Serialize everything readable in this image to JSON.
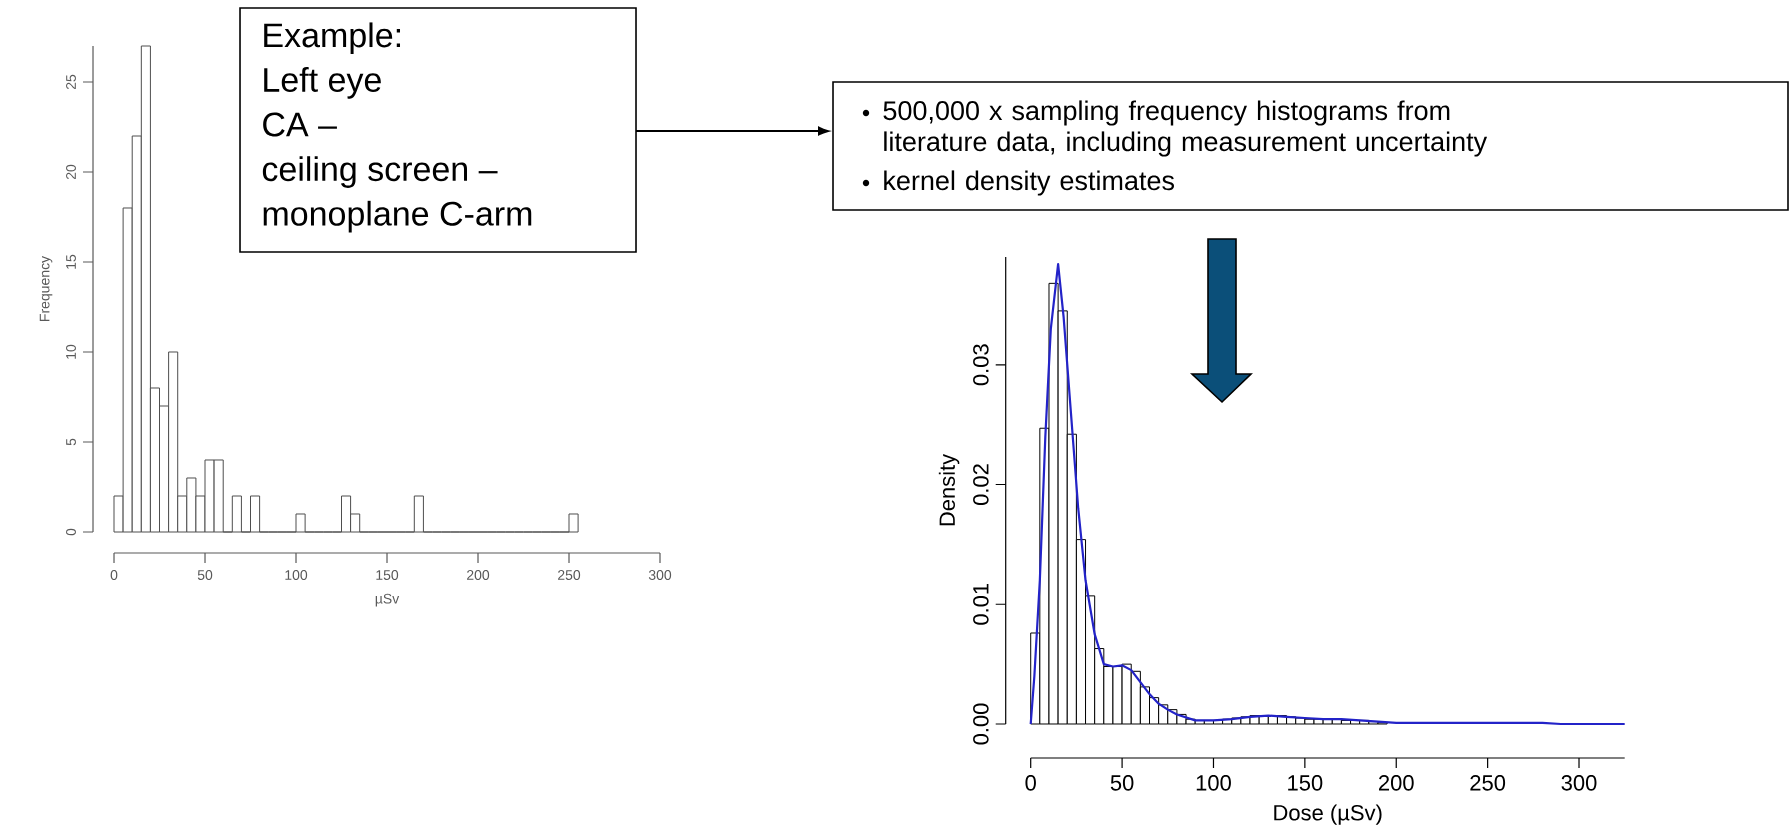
{
  "chart_data": [
    {
      "type": "histogram",
      "bins": [
        0,
        5,
        10,
        15,
        20,
        25,
        30,
        35,
        40,
        45,
        50,
        55,
        60,
        65,
        70,
        75,
        80,
        85,
        90,
        95,
        100,
        105,
        110,
        115,
        120,
        125,
        130,
        135,
        140,
        145,
        150,
        155,
        160,
        165,
        170,
        175,
        180,
        185,
        190,
        195,
        200,
        205,
        210,
        215,
        220,
        225,
        230,
        235,
        240,
        245,
        250,
        255
      ],
      "values": [
        2,
        18,
        22,
        27,
        8,
        7,
        10,
        2,
        3,
        2,
        4,
        4,
        0,
        2,
        0,
        2,
        0,
        0,
        0,
        0,
        1,
        0,
        0,
        0,
        0,
        2,
        1,
        0,
        0,
        0,
        0,
        0,
        0,
        2,
        0,
        0,
        0,
        0,
        0,
        0,
        0,
        0,
        0,
        0,
        0,
        0,
        0,
        0,
        0,
        0,
        1
      ],
      "color": "#4d4d4d",
      "xlim": [
        0,
        300
      ],
      "xticks": [
        0,
        50,
        100,
        150,
        200,
        250,
        300
      ],
      "ylim": [
        0,
        27
      ],
      "yticks": [
        0,
        5,
        10,
        15,
        20,
        25
      ],
      "xlabel": "µSv",
      "ylabel": "Frequency",
      "annotations": [
        "Example:",
        "Left eye",
        "CA –",
        "ceiling screen –",
        "monoplane C-arm"
      ]
    },
    {
      "type": "histogram",
      "series": [
        {
          "color": "#000000",
          "bins": [
            0,
            5,
            10,
            15,
            20,
            25,
            30,
            35,
            40,
            45,
            50,
            55,
            60,
            65,
            70,
            75,
            80,
            85,
            90,
            95,
            100,
            105,
            110,
            115,
            120,
            125,
            130,
            135,
            140,
            145,
            150,
            155,
            160,
            165,
            170,
            175,
            180,
            185,
            190,
            195
          ],
          "values": [
            0.0076,
            0.0247,
            0.0368,
            0.0345,
            0.0242,
            0.0154,
            0.0107,
            0.0063,
            0.0048,
            0.0048,
            0.005,
            0.0044,
            0.0031,
            0.0022,
            0.0016,
            0.0012,
            0.0008,
            0.0004,
            0.0003,
            0.0003,
            0.0003,
            0.0004,
            0.0005,
            0.0006,
            0.0007,
            0.0007,
            0.0007,
            0.0007,
            0.0006,
            0.0005,
            0.0004,
            0.0004,
            0.0004,
            0.0004,
            0.0003,
            0.0003,
            0.0003,
            0.0002,
            0.0001
          ]
        },
        {
          "type": "line",
          "color": "#2323c8",
          "x": [
            0,
            2,
            5,
            8,
            11,
            15,
            18,
            22,
            26,
            30,
            35,
            40,
            45,
            50,
            55,
            60,
            65,
            70,
            75,
            80,
            90,
            100,
            110,
            120,
            130,
            140,
            150,
            160,
            170,
            180,
            190,
            200,
            250,
            280,
            290,
            325
          ],
          "values": [
            0,
            0.004,
            0.012,
            0.024,
            0.033,
            0.0384,
            0.034,
            0.026,
            0.018,
            0.012,
            0.0075,
            0.005,
            0.0048,
            0.0049,
            0.0045,
            0.0035,
            0.0025,
            0.0017,
            0.0012,
            0.0008,
            0.0003,
            0.0003,
            0.0004,
            0.0006,
            0.0007,
            0.0006,
            0.0005,
            0.0004,
            0.0004,
            0.0003,
            0.0002,
            0.0001,
            0.0001,
            0.0001,
            0,
            0
          ]
        }
      ],
      "xlim": [
        0,
        325
      ],
      "xticks": [
        0,
        50,
        100,
        150,
        200,
        250,
        300
      ],
      "ylim": [
        0,
        0.039
      ],
      "yticks": [
        {
          "value": 0,
          "label": "0.00"
        },
        {
          "value": 0.01,
          "label": "0.01"
        },
        {
          "value": 0.02,
          "label": "0.02"
        },
        {
          "value": 0.03,
          "label": "0.03"
        }
      ],
      "xlabel": "Dose (µSv)",
      "ylabel": "Density",
      "annotations": [
        "500,000 x sampling frequency histograms from literature data, including measurement uncertainty",
        "kernel density estimates"
      ]
    }
  ]
}
